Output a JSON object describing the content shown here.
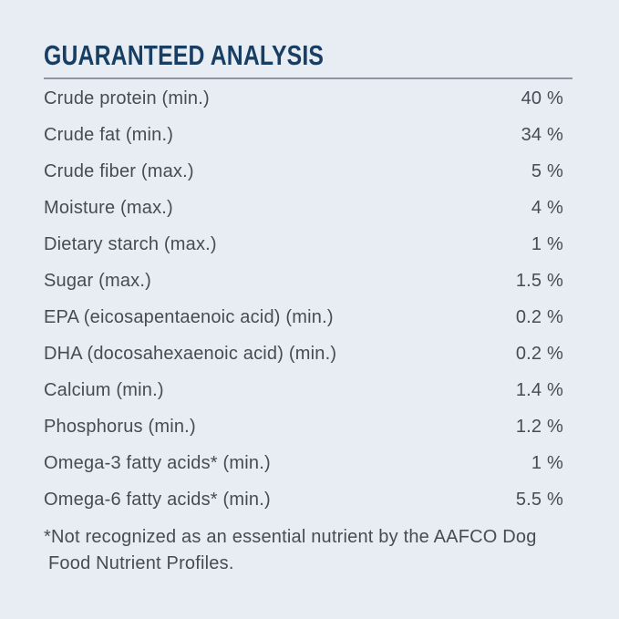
{
  "header": {
    "title": "GUARANTEED ANALYSIS"
  },
  "table": {
    "rows": [
      {
        "label": "Crude protein (min.)",
        "value": "40 %"
      },
      {
        "label": "Crude fat (min.)",
        "value": "34 %"
      },
      {
        "label": "Crude fiber (max.)",
        "value": "5 %"
      },
      {
        "label": "Moisture (max.)",
        "value": "4 %"
      },
      {
        "label": "Dietary starch (max.)",
        "value": "1 %"
      },
      {
        "label": "Sugar (max.)",
        "value": "1.5 %"
      },
      {
        "label": "EPA (eicosapentaenoic acid) (min.)",
        "value": "0.2 %"
      },
      {
        "label": "DHA (docosahexaenoic acid) (min.)",
        "value": "0.2 %"
      },
      {
        "label": "Calcium (min.)",
        "value": "1.4 %"
      },
      {
        "label": "Phosphorus (min.)",
        "value": "1.2 %"
      },
      {
        "label": "Omega-3 fatty acids* (min.)",
        "value": "1 %"
      },
      {
        "label": "Omega-6 fatty acids* (min.)",
        "value": "5.5 %"
      }
    ]
  },
  "footnote": {
    "text": "*Not recognized as an essential nutrient by the AAFCO Dog Food Nutrient Profiles."
  },
  "colors": {
    "background": "#e8ecf3",
    "title": "#183f63",
    "body_text": "#484c52",
    "rule": "#8e96a1"
  }
}
